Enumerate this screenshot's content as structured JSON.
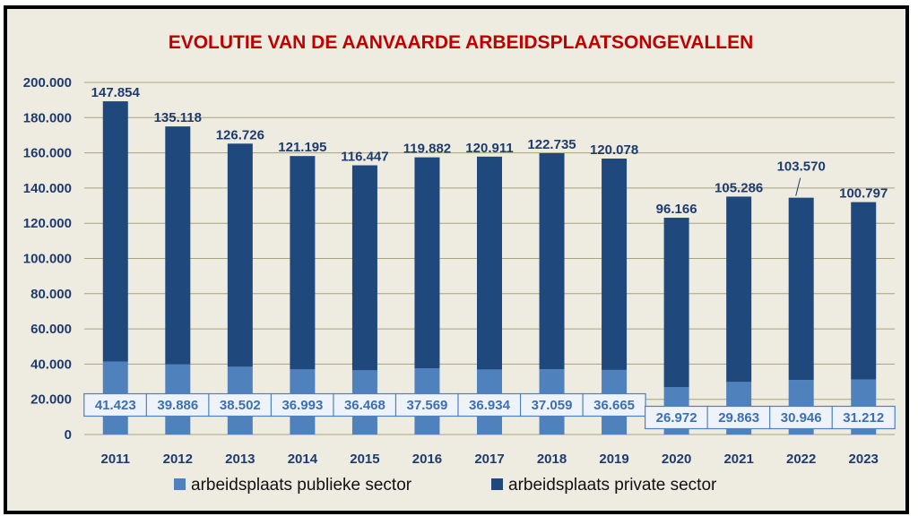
{
  "chart_data": {
    "type": "bar",
    "stacked": true,
    "title": "EVOLUTIE VAN DE AANVAARDE ARBEIDSPLAATSONGEVALLEN",
    "categories": [
      "2011",
      "2012",
      "2013",
      "2014",
      "2015",
      "2016",
      "2017",
      "2018",
      "2019",
      "2020",
      "2021",
      "2022",
      "2023"
    ],
    "series": [
      {
        "name": "arbeidsplaats publieke sector",
        "color": "#4f81bd",
        "values": [
          41423,
          39886,
          38502,
          36993,
          36468,
          37569,
          36934,
          37059,
          36665,
          26972,
          29863,
          30946,
          31212
        ],
        "labels": [
          "41.423",
          "39.886",
          "38.502",
          "36.993",
          "36.468",
          "37.569",
          "36.934",
          "37.059",
          "36.665",
          "26.972",
          "29.863",
          "30.946",
          "31.212"
        ]
      },
      {
        "name": "arbeidsplaats private sector",
        "color": "#1f497d",
        "values": [
          147854,
          135118,
          126726,
          121195,
          116447,
          119882,
          120911,
          122735,
          120078,
          96166,
          105286,
          103570,
          100797
        ],
        "labels": [
          "147.854",
          "135.118",
          "126.726",
          "121.195",
          "116.447",
          "119.882",
          "120.911",
          "122.735",
          "120.078",
          "96.166",
          "105.286",
          "103.570",
          "100.797"
        ]
      }
    ],
    "ylim": [
      0,
      200000
    ],
    "yticks": [
      0,
      20000,
      40000,
      60000,
      80000,
      100000,
      120000,
      140000,
      160000,
      180000,
      200000
    ],
    "ytick_labels": [
      "0",
      "20.000",
      "40.000",
      "60.000",
      "80.000",
      "100.000",
      "120.000",
      "140.000",
      "160.000",
      "180.000",
      "200.000"
    ],
    "grid": true,
    "legend": "bottom",
    "colors": {
      "background": "#eeece1",
      "title": "#c00000",
      "gridline": "#a6a47a",
      "text": "#1f3b6e"
    }
  }
}
